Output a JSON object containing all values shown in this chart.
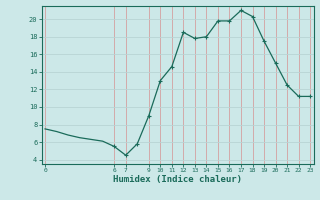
{
  "title": "",
  "xlabel": "Humidex (Indice chaleur)",
  "ylabel": "",
  "background_color": "#cce8e8",
  "line_color": "#1a6b5a",
  "marker_color": "#1a6b5a",
  "grid_color_v": "#d4a0a0",
  "grid_color_h": "#b8d4d4",
  "x_values": [
    0,
    1,
    2,
    3,
    4,
    5,
    6,
    7,
    8,
    9,
    10,
    11,
    12,
    13,
    14,
    15,
    16,
    17,
    18,
    19,
    20,
    21,
    22,
    23
  ],
  "y_values": [
    7.5,
    7.2,
    6.8,
    6.5,
    6.3,
    6.1,
    5.5,
    4.5,
    5.8,
    9.0,
    13.0,
    14.6,
    18.5,
    17.8,
    18.0,
    19.8,
    19.8,
    21.0,
    20.3,
    17.5,
    15.0,
    12.5,
    11.2,
    11.2
  ],
  "has_markers": [
    0,
    0,
    0,
    0,
    0,
    0,
    1,
    1,
    1,
    1,
    1,
    1,
    1,
    1,
    1,
    1,
    1,
    1,
    1,
    1,
    1,
    1,
    1,
    1
  ],
  "ylim": [
    3.5,
    21.5
  ],
  "yticks": [
    4,
    6,
    8,
    10,
    12,
    14,
    16,
    18,
    20
  ],
  "xticks": [
    0,
    6,
    7,
    9,
    10,
    11,
    12,
    13,
    14,
    15,
    16,
    17,
    18,
    19,
    20,
    21,
    22,
    23
  ],
  "xlim": [
    -0.3,
    23.3
  ]
}
